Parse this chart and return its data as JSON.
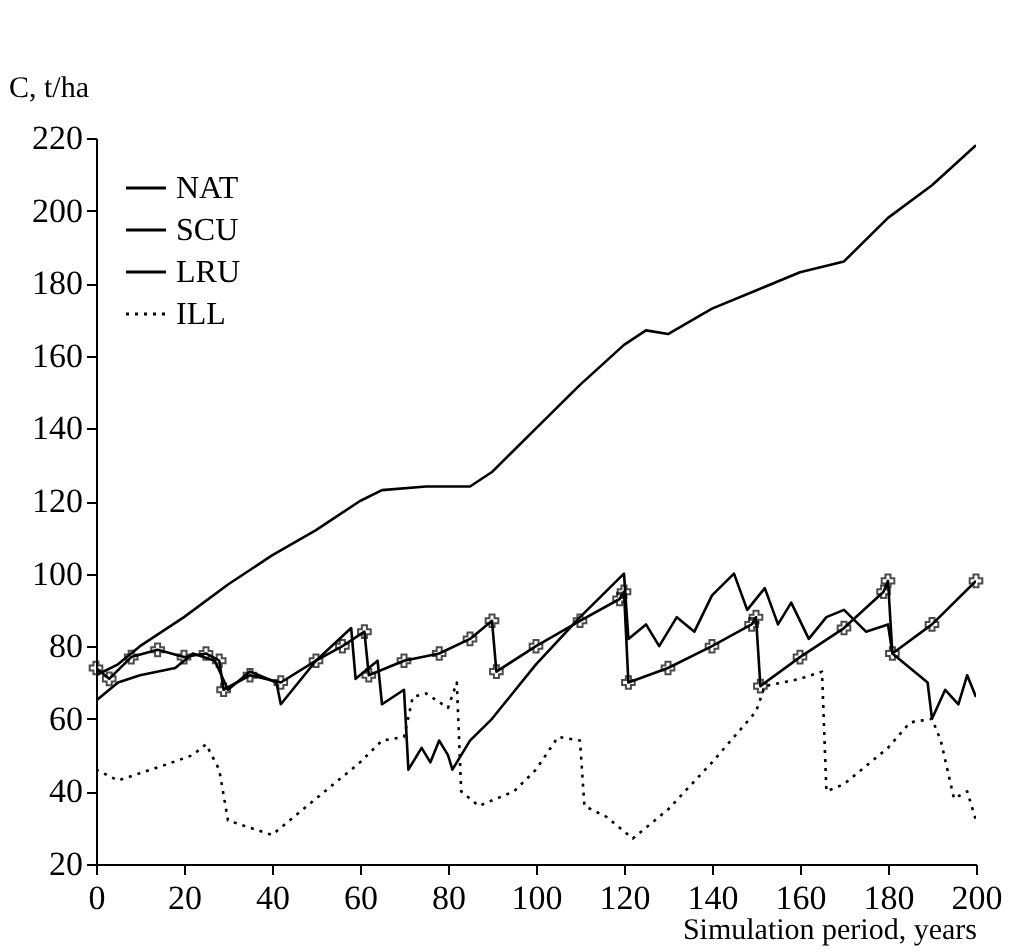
{
  "chart_data": {
    "type": "line",
    "xlabel": "Simulation period, years",
    "ylabel": "C, t/ha",
    "xlim": [
      0,
      200
    ],
    "xticks": [
      0,
      20,
      40,
      60,
      80,
      100,
      120,
      140,
      160,
      180,
      200
    ],
    "ylim": [
      20,
      220
    ],
    "yticks": [
      20,
      40,
      60,
      80,
      100,
      120,
      140,
      160,
      180,
      200,
      220
    ],
    "grid": false,
    "legend": "top left",
    "series": [
      {
        "name": "NAT",
        "color": "#000000",
        "line_style": "solid",
        "x": [
          0,
          5,
          10,
          20,
          30,
          40,
          50,
          60,
          65,
          75,
          85,
          90,
          100,
          110,
          120,
          125,
          130,
          140,
          150,
          160,
          170,
          180,
          190,
          200
        ],
        "values": [
          72,
          75,
          80,
          88,
          97,
          105,
          112,
          120,
          123,
          124,
          124,
          128,
          140,
          152,
          163,
          167,
          166,
          173,
          178,
          183,
          186,
          198,
          207,
          218
        ]
      },
      {
        "name": "SCU",
        "color": "#000000",
        "line_style": "solid",
        "marker": "cross",
        "x": [
          0,
          3,
          8,
          14,
          20,
          25,
          28,
          29,
          35,
          42,
          50,
          56,
          61,
          62,
          70,
          78,
          85,
          90,
          91,
          100,
          110,
          119,
          120,
          121,
          130,
          140,
          149,
          150,
          151,
          160,
          170,
          179,
          180,
          181,
          190,
          200
        ],
        "values": [
          74,
          71,
          77,
          79,
          77,
          78,
          76,
          68,
          72,
          70,
          76,
          80,
          84,
          72,
          76,
          78,
          82,
          87,
          73,
          80,
          87,
          93,
          95,
          70,
          74,
          80,
          86,
          88,
          69,
          77,
          85,
          95,
          98,
          78,
          86,
          98
        ]
      },
      {
        "name": "LRU",
        "color": "#000000",
        "line_style": "solid",
        "x": [
          0,
          5,
          10,
          18,
          22,
          27,
          30,
          35,
          41,
          42,
          50,
          58,
          59,
          64,
          65,
          70,
          71,
          74,
          76,
          78,
          80,
          81,
          85,
          90,
          100,
          110,
          120,
          121,
          125,
          128,
          132,
          136,
          140,
          145,
          148,
          152,
          155,
          158,
          162,
          166,
          170,
          175,
          180,
          181,
          185,
          189,
          190,
          193,
          196,
          198,
          200
        ],
        "values": [
          65,
          70,
          72,
          74,
          78,
          76,
          68,
          73,
          70,
          64,
          76,
          85,
          71,
          76,
          64,
          68,
          46,
          52,
          48,
          54,
          50,
          46,
          54,
          60,
          75,
          88,
          100,
          82,
          86,
          80,
          88,
          84,
          94,
          100,
          90,
          96,
          86,
          92,
          82,
          88,
          90,
          84,
          86,
          78,
          74,
          70,
          60,
          68,
          64,
          72,
          66
        ]
      },
      {
        "name": "ILL",
        "color": "#000000",
        "line_style": "dotted",
        "x": [
          0,
          5,
          10,
          15,
          22,
          25,
          28,
          30,
          35,
          40,
          50,
          60,
          65,
          70,
          72,
          75,
          80,
          82,
          83,
          87,
          95,
          100,
          105,
          110,
          111,
          116,
          122,
          130,
          140,
          150,
          152,
          160,
          165,
          166,
          170,
          180,
          185,
          190,
          192,
          195,
          198,
          200
        ],
        "values": [
          46,
          43,
          45,
          47,
          50,
          53,
          46,
          32,
          30,
          28,
          38,
          48,
          54,
          55,
          66,
          67,
          63,
          70,
          40,
          36,
          40,
          46,
          55,
          54,
          36,
          33,
          27,
          35,
          48,
          62,
          69,
          71,
          73,
          40,
          42,
          52,
          59,
          60,
          54,
          38,
          40,
          32
        ]
      }
    ]
  }
}
